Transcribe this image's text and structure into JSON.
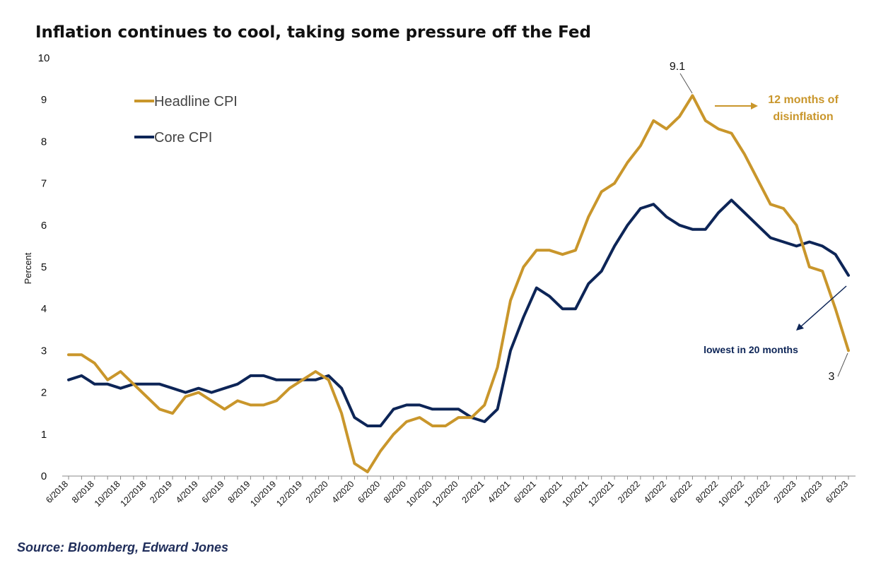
{
  "chart_data": {
    "type": "line",
    "title": "Inflation continues to cool, taking some pressure off the Fed",
    "ylabel": "Percent",
    "ylim": [
      0,
      10
    ],
    "yticks": [
      "0",
      "1",
      "2",
      "3",
      "4",
      "5",
      "6",
      "7",
      "8",
      "9",
      "10"
    ],
    "x_tick_labels": [
      "6/2018",
      "8/2018",
      "10/2018",
      "12/2018",
      "2/2019",
      "4/2019",
      "6/2019",
      "8/2019",
      "10/2019",
      "12/2019",
      "2/2020",
      "4/2020",
      "6/2020",
      "8/2020",
      "10/2020",
      "12/2020",
      "2/2021",
      "4/2021",
      "6/2021",
      "8/2021",
      "10/2021",
      "12/2021",
      "2/2022",
      "4/2022",
      "6/2022",
      "8/2022",
      "10/2022",
      "12/2022",
      "2/2023",
      "4/2023",
      "6/2023"
    ],
    "x_range": [
      "6/2018",
      "6/2023"
    ],
    "grid": false,
    "legend_position": "top-left",
    "series": [
      {
        "name": "Headline CPI",
        "color": "#c9962b",
        "values": [
          2.9,
          2.9,
          2.7,
          2.3,
          2.5,
          2.2,
          1.9,
          1.6,
          1.5,
          1.9,
          2.0,
          1.8,
          1.6,
          1.8,
          1.7,
          1.7,
          1.8,
          2.1,
          2.3,
          2.5,
          2.3,
          1.5,
          0.3,
          0.1,
          0.6,
          1.0,
          1.3,
          1.4,
          1.2,
          1.2,
          1.4,
          1.4,
          1.7,
          2.6,
          4.2,
          5.0,
          5.4,
          5.4,
          5.3,
          5.4,
          6.2,
          6.8,
          7.0,
          7.5,
          7.9,
          8.5,
          8.3,
          8.6,
          9.1,
          8.5,
          8.3,
          8.2,
          7.7,
          7.1,
          6.5,
          6.4,
          6.0,
          5.0,
          4.9,
          4.0,
          3.0
        ]
      },
      {
        "name": "Core CPI",
        "color": "#0d2557",
        "values": [
          2.3,
          2.4,
          2.2,
          2.2,
          2.1,
          2.2,
          2.2,
          2.2,
          2.1,
          2.0,
          2.1,
          2.0,
          2.1,
          2.2,
          2.4,
          2.4,
          2.3,
          2.3,
          2.3,
          2.3,
          2.4,
          2.1,
          1.4,
          1.2,
          1.2,
          1.6,
          1.7,
          1.7,
          1.6,
          1.6,
          1.6,
          1.4,
          1.3,
          1.6,
          3.0,
          3.8,
          4.5,
          4.3,
          4.0,
          4.0,
          4.6,
          4.9,
          5.5,
          6.0,
          6.4,
          6.5,
          6.2,
          6.0,
          5.9,
          5.9,
          6.3,
          6.6,
          6.3,
          6.0,
          5.7,
          5.6,
          5.5,
          5.6,
          5.5,
          5.3,
          4.8
        ]
      }
    ],
    "annotations": {
      "peak_label": "9.1",
      "last_label": "3",
      "disinflation_line1": "12 months of",
      "disinflation_line2": "disinflation",
      "lowest_label": "lowest in 20 months"
    }
  },
  "source": "Source: Bloomberg, Edward Jones"
}
